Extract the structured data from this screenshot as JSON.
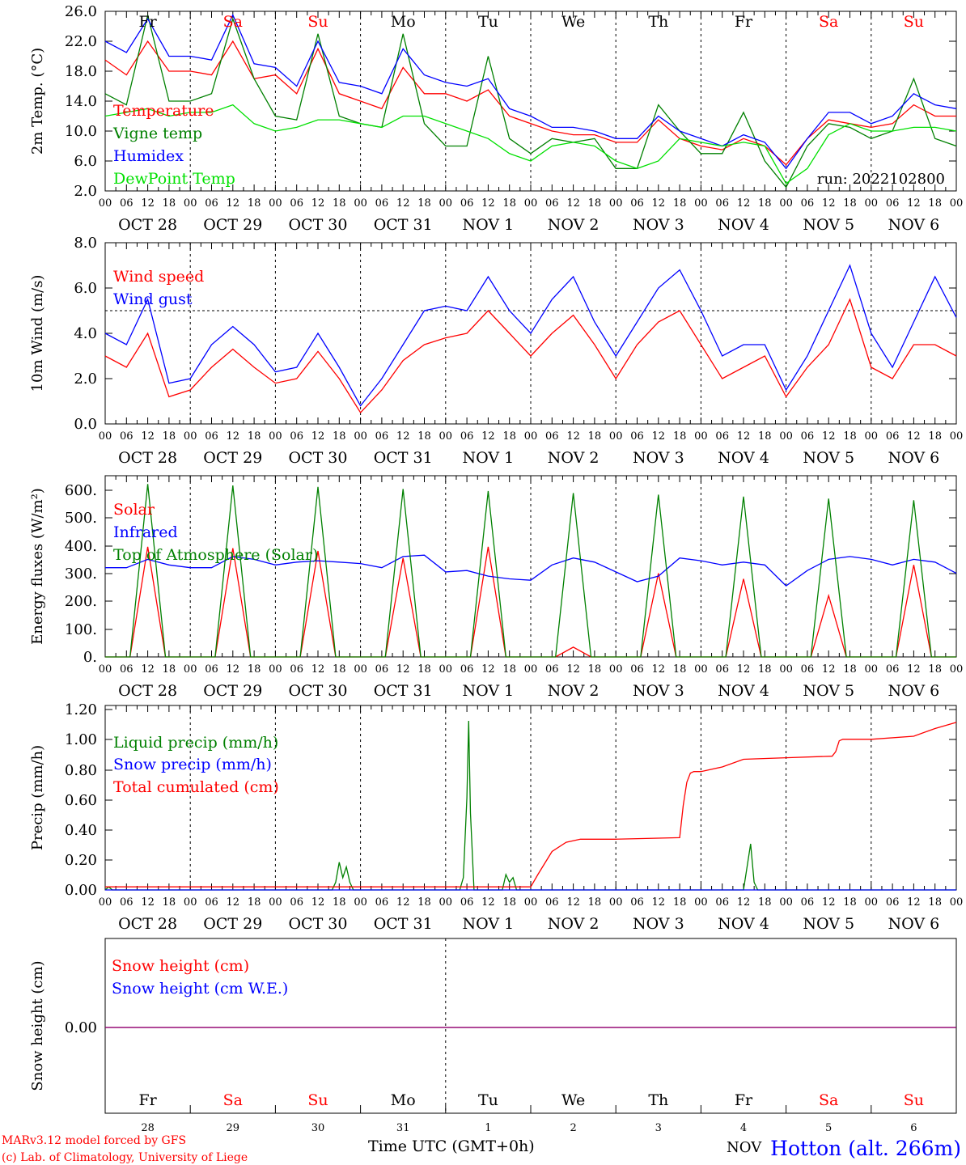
{
  "run_label": "run: 2022102800",
  "hour_ticks": [
    "00",
    "06",
    "12",
    "18"
  ],
  "hour_end": "00",
  "date_labels": [
    "OCT 28",
    "OCT 29",
    "OCT 30",
    "OCT 31",
    "NOV  1",
    "NOV  2",
    "NOV  3",
    "NOV  4",
    "NOV  5",
    "NOV  6"
  ],
  "weekdays": [
    {
      "label": "Fr",
      "color": "#000000"
    },
    {
      "label": "Sa",
      "color": "#ff0000"
    },
    {
      "label": "Su",
      "color": "#ff0000"
    },
    {
      "label": "Mo",
      "color": "#000000"
    },
    {
      "label": "Tu",
      "color": "#000000"
    },
    {
      "label": "We",
      "color": "#000000"
    },
    {
      "label": "Th",
      "color": "#000000"
    },
    {
      "label": "Fr",
      "color": "#000000"
    },
    {
      "label": "Sa",
      "color": "#ff0000"
    },
    {
      "label": "Su",
      "color": "#ff0000"
    }
  ],
  "day_numbers": [
    "28",
    "29",
    "30",
    "31",
    "1",
    "2",
    "3",
    "4",
    "5",
    "6"
  ],
  "x_title": "Time UTC (GMT+0h)",
  "nov_fragment": "NOV",
  "footer": {
    "model_line": "MARv3.12 model forced by GFS",
    "credit_line": "(c) Lab. of Climatology, University of Liege",
    "station": "Hotton (alt. 266m)"
  },
  "colors": {
    "red": "#ff0000",
    "green": "#008000",
    "blue": "#0000ff",
    "light_green": "#00e000",
    "purple": "#800080",
    "black": "#000000"
  },
  "chart_data": [
    {
      "type": "line",
      "ylabel": "2m Temp. (°C)",
      "ylim": [
        2,
        26
      ],
      "yticks": [
        "2.0",
        "6.0",
        "10.0",
        "14.0",
        "18.0",
        "22.0",
        "26.0"
      ],
      "x_range_hours": [
        0,
        240
      ],
      "series": [
        {
          "name": "Temperature",
          "color": "#ff0000",
          "x": [
            0,
            6,
            12,
            18,
            24,
            30,
            36,
            42,
            48,
            54,
            60,
            66,
            72,
            78,
            84,
            90,
            96,
            102,
            108,
            114,
            120,
            126,
            132,
            138,
            144,
            150,
            156,
            162,
            168,
            174,
            180,
            186,
            192,
            198,
            204,
            210,
            216,
            222,
            228,
            234,
            240
          ],
          "y": [
            19.5,
            17.5,
            22,
            18,
            18,
            17.5,
            22,
            17,
            17.5,
            15,
            21,
            15,
            14,
            13,
            18.5,
            15,
            15,
            14,
            15.5,
            12,
            11,
            10,
            9.5,
            9.5,
            8.5,
            8.5,
            11.5,
            9,
            8,
            7.5,
            9,
            8,
            5.5,
            9,
            11.5,
            11,
            10.5,
            11,
            13.5,
            12,
            12
          ]
        },
        {
          "name": "Vigne temp",
          "color": "#008000",
          "x": [
            0,
            6,
            12,
            18,
            24,
            30,
            36,
            42,
            48,
            54,
            60,
            66,
            72,
            78,
            84,
            90,
            96,
            102,
            108,
            114,
            120,
            126,
            132,
            138,
            144,
            150,
            156,
            162,
            168,
            174,
            180,
            186,
            192,
            198,
            204,
            210,
            216,
            222,
            228,
            234,
            240
          ],
          "y": [
            15,
            13.5,
            25.5,
            14,
            14,
            15,
            25,
            17,
            12,
            11.5,
            23,
            12,
            11,
            10.5,
            23,
            11,
            8,
            8,
            20,
            9,
            7,
            9,
            8.5,
            9,
            5,
            5,
            13.5,
            10,
            7,
            7,
            12.5,
            6,
            2.5,
            8,
            11,
            10.5,
            9,
            10,
            17,
            9,
            8
          ]
        },
        {
          "name": "Humidex",
          "color": "#0000ff",
          "x": [
            0,
            6,
            12,
            18,
            24,
            30,
            36,
            42,
            48,
            54,
            60,
            66,
            72,
            78,
            84,
            90,
            96,
            102,
            108,
            114,
            120,
            126,
            132,
            138,
            144,
            150,
            156,
            162,
            168,
            174,
            180,
            186,
            192,
            198,
            204,
            210,
            216,
            222,
            228,
            234,
            240
          ],
          "y": [
            22,
            20.5,
            25,
            20,
            20,
            19.5,
            25.5,
            19,
            18.5,
            16,
            22,
            16.5,
            16,
            15,
            21,
            17.5,
            16.5,
            16,
            17,
            13,
            12,
            10.5,
            10.5,
            10,
            9,
            9,
            12,
            10,
            9,
            8,
            9.5,
            8.5,
            5,
            9,
            12.5,
            12.5,
            11,
            12,
            15,
            13.5,
            13
          ]
        },
        {
          "name": "DewPoint Temp",
          "color": "#00e000",
          "x": [
            0,
            6,
            12,
            18,
            24,
            30,
            36,
            42,
            48,
            54,
            60,
            66,
            72,
            78,
            84,
            90,
            96,
            102,
            108,
            114,
            120,
            126,
            132,
            138,
            144,
            150,
            156,
            162,
            168,
            174,
            180,
            186,
            192,
            198,
            204,
            210,
            216,
            222,
            228,
            234,
            240
          ],
          "y": [
            12,
            12.5,
            13,
            12,
            12.5,
            12.5,
            13.5,
            11,
            10,
            10.5,
            11.5,
            11.5,
            11,
            10.5,
            12,
            12,
            11,
            10,
            9,
            7,
            6,
            8,
            8.5,
            8,
            6,
            5,
            6,
            9,
            8.5,
            8,
            8.5,
            8,
            3,
            5,
            9.5,
            11,
            10,
            10,
            10.5,
            10.5,
            10
          ]
        }
      ]
    },
    {
      "type": "line",
      "ylabel": "10m Wind (m/s)",
      "ylim": [
        0,
        8
      ],
      "yticks": [
        "0.0",
        "2.0",
        "4.0",
        "6.0",
        "8.0"
      ],
      "reference_line": 5,
      "x_range_hours": [
        0,
        240
      ],
      "series": [
        {
          "name": "Wind speed",
          "color": "#ff0000",
          "x": [
            0,
            6,
            12,
            18,
            24,
            30,
            36,
            42,
            48,
            54,
            60,
            66,
            72,
            78,
            84,
            90,
            96,
            102,
            108,
            114,
            120,
            126,
            132,
            138,
            144,
            150,
            156,
            162,
            168,
            174,
            180,
            186,
            192,
            198,
            204,
            210,
            216,
            222,
            228,
            234,
            240
          ],
          "y": [
            3,
            2.5,
            4,
            1.2,
            1.5,
            2.5,
            3.3,
            2.5,
            1.8,
            2,
            3.2,
            2,
            0.5,
            1.5,
            2.8,
            3.5,
            3.8,
            4,
            5,
            4,
            3,
            4,
            4.8,
            3.5,
            2,
            3.5,
            4.5,
            5,
            3.5,
            2,
            2.5,
            3,
            1.2,
            2.5,
            3.5,
            5.5,
            2.5,
            2,
            3.5,
            3.5,
            3
          ]
        },
        {
          "name": "Wind gust",
          "color": "#0000ff",
          "x": [
            0,
            6,
            12,
            18,
            24,
            30,
            36,
            42,
            48,
            54,
            60,
            66,
            72,
            78,
            84,
            90,
            96,
            102,
            108,
            114,
            120,
            126,
            132,
            138,
            144,
            150,
            156,
            162,
            168,
            174,
            180,
            186,
            192,
            198,
            204,
            210,
            216,
            222,
            228,
            234,
            240
          ],
          "y": [
            4,
            3.5,
            5.5,
            1.8,
            2,
            3.5,
            4.3,
            3.5,
            2.3,
            2.5,
            4,
            2.5,
            0.8,
            2,
            3.5,
            5,
            5.2,
            5,
            6.5,
            5,
            4,
            5.5,
            6.5,
            4.5,
            3,
            4.5,
            6,
            6.8,
            5,
            3,
            3.5,
            3.5,
            1.5,
            3,
            5,
            7,
            4,
            2.5,
            4.5,
            6.5,
            4.7
          ]
        }
      ]
    },
    {
      "type": "line",
      "ylabel": "Energy fluxes (W/m²)",
      "ylim": [
        0,
        650
      ],
      "yticks": [
        "0.",
        "100.",
        "200.",
        "300.",
        "400.",
        "500.",
        "600."
      ],
      "x_range_hours": [
        0,
        240
      ],
      "series": [
        {
          "name": "Solar",
          "color": "#ff0000",
          "x": [
            0,
            7,
            12,
            17,
            24,
            31,
            36,
            41,
            48,
            55,
            60,
            65,
            72,
            79,
            84,
            89,
            96,
            103,
            108,
            113,
            120,
            127,
            132,
            137,
            144,
            151,
            156,
            161,
            168,
            175,
            180,
            185,
            192,
            199,
            204,
            209,
            216,
            223,
            228,
            233,
            240
          ],
          "y": [
            0,
            0,
            395,
            0,
            0,
            0,
            390,
            0,
            0,
            0,
            380,
            0,
            0,
            0,
            355,
            0,
            0,
            0,
            395,
            0,
            0,
            0,
            35,
            0,
            0,
            0,
            300,
            0,
            0,
            0,
            280,
            0,
            0,
            0,
            220,
            0,
            0,
            0,
            330,
            0,
            0
          ]
        },
        {
          "name": "Infrared",
          "color": "#0000ff",
          "x": [
            0,
            6,
            12,
            18,
            24,
            30,
            36,
            42,
            48,
            54,
            60,
            66,
            72,
            78,
            84,
            90,
            96,
            102,
            108,
            114,
            120,
            126,
            132,
            138,
            144,
            150,
            156,
            162,
            168,
            174,
            180,
            186,
            192,
            198,
            204,
            210,
            216,
            222,
            228,
            234,
            240
          ],
          "y": [
            320,
            320,
            350,
            330,
            320,
            320,
            360,
            350,
            330,
            340,
            345,
            340,
            335,
            320,
            360,
            365,
            305,
            310,
            290,
            280,
            275,
            330,
            355,
            340,
            305,
            270,
            290,
            355,
            345,
            330,
            340,
            330,
            255,
            310,
            350,
            360,
            350,
            330,
            350,
            340,
            300
          ]
        },
        {
          "name": "Top of Atmosphere (Solar)",
          "color": "#008000",
          "x": [
            0,
            7,
            12,
            17,
            24,
            31,
            36,
            41,
            48,
            55,
            60,
            65,
            72,
            79,
            84,
            89,
            96,
            103,
            108,
            113,
            120,
            127,
            132,
            137,
            144,
            151,
            156,
            161,
            168,
            175,
            180,
            185,
            192,
            199,
            204,
            209,
            216,
            223,
            228,
            233,
            240
          ],
          "y": [
            0,
            0,
            620,
            0,
            0,
            0,
            615,
            0,
            0,
            0,
            610,
            0,
            0,
            0,
            602,
            0,
            0,
            0,
            595,
            0,
            0,
            0,
            588,
            0,
            0,
            0,
            582,
            0,
            0,
            0,
            575,
            0,
            0,
            0,
            568,
            0,
            0,
            0,
            562,
            0,
            0
          ]
        }
      ]
    },
    {
      "type": "line",
      "ylabel": "Precip (mm/h)",
      "ylim": [
        0,
        1.2
      ],
      "yticks": [
        "0.00",
        "0.20",
        "0.40",
        "0.60",
        "0.80",
        "1.00",
        "1.20"
      ],
      "x_range_hours": [
        0,
        240
      ],
      "series": [
        {
          "name": "Liquid precip (mm/h)",
          "color": "#008000",
          "x": [
            0,
            1,
            2,
            3,
            8,
            64,
            65,
            66,
            67,
            68,
            69,
            70,
            100,
            101,
            102,
            102.5,
            103,
            104,
            112,
            113,
            114,
            115,
            116,
            120,
            180,
            181,
            182,
            183,
            184,
            240
          ],
          "y": [
            0,
            0.02,
            0,
            0,
            0,
            0,
            0.05,
            0.18,
            0.08,
            0.15,
            0.05,
            0,
            0,
            0.08,
            0.6,
            1.1,
            0.5,
            0,
            0,
            0.1,
            0.05,
            0.08,
            0,
            0,
            0,
            0.15,
            0.3,
            0.05,
            0,
            0
          ]
        },
        {
          "name": "Snow precip (mm/h)",
          "color": "#0000ff",
          "x": [
            0,
            240
          ],
          "y": [
            0,
            0
          ]
        },
        {
          "name": "Total cumulated (cm)",
          "color": "#ff0000",
          "x": [
            0,
            96,
            120,
            122,
            126,
            130,
            134,
            138,
            144,
            162,
            163,
            164,
            165,
            166,
            168,
            174,
            180,
            192,
            205,
            206,
            207,
            208,
            216,
            228,
            234,
            240
          ],
          "y": [
            0.02,
            0.02,
            0.02,
            0.1,
            0.25,
            0.31,
            0.33,
            0.33,
            0.33,
            0.34,
            0.55,
            0.7,
            0.76,
            0.77,
            0.77,
            0.8,
            0.85,
            0.86,
            0.87,
            0.9,
            0.97,
            0.98,
            0.98,
            1.0,
            1.05,
            1.09
          ]
        }
      ]
    },
    {
      "type": "line",
      "ylabel": "Snow height (cm)",
      "yticks": [
        "0.00"
      ],
      "x_range_hours": [
        0,
        240
      ],
      "series": [
        {
          "name": "Snow height (cm)",
          "color": "#ff0000",
          "x": [
            0,
            240
          ],
          "y": [
            0,
            0
          ]
        },
        {
          "name": "Snow height (cm W.E.)",
          "color": "#0000ff",
          "x": [
            0,
            240
          ],
          "y": [
            0,
            0
          ]
        }
      ]
    }
  ]
}
